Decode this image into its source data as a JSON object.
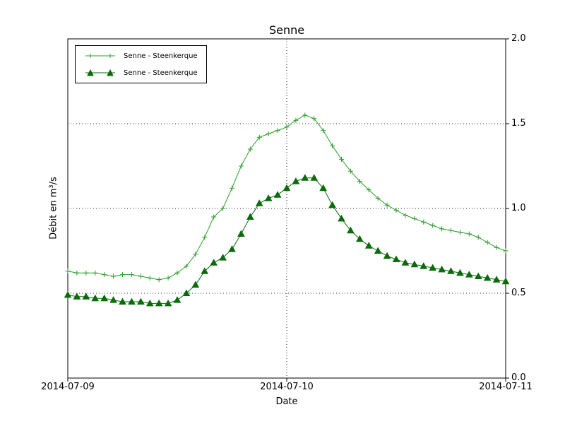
{
  "chart_data": {
    "type": "line",
    "title": "Senne",
    "xlabel": "Date",
    "ylabel": "Débit en m³/s",
    "ylim": [
      0,
      2
    ],
    "xlim_hours": [
      0,
      48
    ],
    "grid": true,
    "legend_position": "upper left",
    "xticks": [
      {
        "hour": 0,
        "label": "2014-07-09"
      },
      {
        "hour": 24,
        "label": "2014-07-10"
      },
      {
        "hour": 48,
        "label": "2014-07-11"
      }
    ],
    "yticks": [
      {
        "value": 0.0,
        "label": "0.0"
      },
      {
        "value": 0.5,
        "label": "0.5"
      },
      {
        "value": 1.0,
        "label": "1.0"
      },
      {
        "value": 1.5,
        "label": "1.5"
      },
      {
        "value": 2.0,
        "label": "2.0"
      }
    ],
    "x_hours": [
      0,
      1,
      2,
      3,
      4,
      5,
      6,
      7,
      8,
      9,
      10,
      11,
      12,
      13,
      14,
      15,
      16,
      17,
      18,
      19,
      20,
      21,
      22,
      23,
      24,
      25,
      26,
      27,
      28,
      29,
      30,
      31,
      32,
      33,
      34,
      35,
      36,
      37,
      38,
      39,
      40,
      41,
      42,
      43,
      44,
      45,
      46,
      47,
      48
    ],
    "series": [
      {
        "name": "Senne - Steenkerque",
        "marker": "plus",
        "color": "#2a9e2a",
        "values": [
          0.63,
          0.62,
          0.62,
          0.62,
          0.61,
          0.6,
          0.61,
          0.61,
          0.6,
          0.59,
          0.58,
          0.59,
          0.62,
          0.66,
          0.73,
          0.83,
          0.95,
          1.0,
          1.12,
          1.25,
          1.35,
          1.42,
          1.44,
          1.46,
          1.48,
          1.52,
          1.55,
          1.53,
          1.46,
          1.37,
          1.29,
          1.22,
          1.16,
          1.11,
          1.06,
          1.02,
          0.99,
          0.96,
          0.94,
          0.92,
          0.9,
          0.88,
          0.87,
          0.86,
          0.85,
          0.83,
          0.8,
          0.77,
          0.75
        ]
      },
      {
        "name": "Senne - Steenkerque",
        "marker": "triangle",
        "color": "#0b6b0b",
        "values": [
          0.49,
          0.48,
          0.48,
          0.47,
          0.47,
          0.46,
          0.45,
          0.45,
          0.45,
          0.44,
          0.44,
          0.44,
          0.46,
          0.5,
          0.55,
          0.63,
          0.68,
          0.71,
          0.76,
          0.85,
          0.95,
          1.03,
          1.06,
          1.08,
          1.12,
          1.16,
          1.18,
          1.18,
          1.12,
          1.02,
          0.94,
          0.87,
          0.82,
          0.78,
          0.75,
          0.72,
          0.7,
          0.68,
          0.67,
          0.66,
          0.65,
          0.64,
          0.63,
          0.62,
          0.61,
          0.6,
          0.59,
          0.58,
          0.57
        ]
      }
    ]
  }
}
